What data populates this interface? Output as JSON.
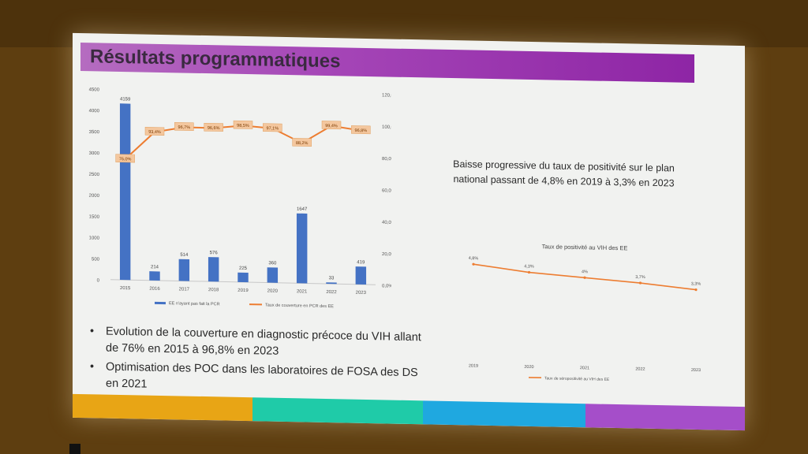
{
  "slide": {
    "title": "Résultats programmatiques",
    "right_text": "Baisse progressive du taux de positivité sur le plan national passant de 4,8% en 2019 à 3,3% en 2023",
    "bullets": [
      "Evolution de la couverture en diagnostic précoce du VIH allant de 76% en 2015 à 96,8% en 2023",
      "Optimisation des POC dans les laboratoires de FOSA des DS en 2021"
    ],
    "footer_colors": [
      "#e8a515",
      "#1fcba8",
      "#1fa8e0",
      "#a54ec9"
    ]
  },
  "chart_data": [
    {
      "type": "bar",
      "categories": [
        "2015",
        "2016",
        "2017",
        "2018",
        "2019",
        "2020",
        "2021",
        "2022",
        "2023"
      ],
      "y_ticks": [
        "4500",
        "4000",
        "3500",
        "3000",
        "2500",
        "2000",
        "1500",
        "1000",
        "500",
        "0"
      ],
      "y2_ticks": [
        "120,0%",
        "100,0%",
        "80,0%",
        "60,0%",
        "40,0%",
        "20,0%",
        "0,0%"
      ],
      "ylim": [
        0,
        4500
      ],
      "y2lim": [
        0,
        120
      ],
      "series": [
        {
          "name": "EE n'ayant pas fait la PCR",
          "kind": "bar",
          "color": "#4472c4",
          "values": [
            4159,
            214,
            514,
            576,
            225,
            360,
            1647,
            33,
            419
          ],
          "labels": [
            "4159",
            "214",
            "514",
            "576",
            "225",
            "360",
            "1647",
            "33",
            "419"
          ]
        },
        {
          "name": "Taux de couverture en PCR des EE",
          "kind": "line",
          "color": "#ed7d31",
          "values": [
            76.0,
            93.4,
            96.7,
            96.6,
            98.5,
            97.1,
            88.2,
            99.4,
            96.8
          ],
          "labels": [
            "76,0%",
            "93,4%",
            "96,7%",
            "96,6%",
            "98,5%",
            "97,1%",
            "88,2%",
            "99,4%",
            "96,8%"
          ]
        }
      ],
      "legend_position": "bottom"
    },
    {
      "type": "line",
      "title": "Taux de positivité au VIH des EE",
      "categories": [
        "2019",
        "2020",
        "2021",
        "2022",
        "2023"
      ],
      "series": [
        {
          "name": "Taux de séropositivité au VIH des EE",
          "color": "#ed7d31",
          "values": [
            4.8,
            4.3,
            4.0,
            3.7,
            3.3
          ],
          "labels": [
            "4,8%",
            "4,3%",
            "4%",
            "3,7%",
            "3,3%"
          ]
        }
      ],
      "ylim": [
        0,
        5
      ],
      "legend_position": "bottom"
    }
  ]
}
